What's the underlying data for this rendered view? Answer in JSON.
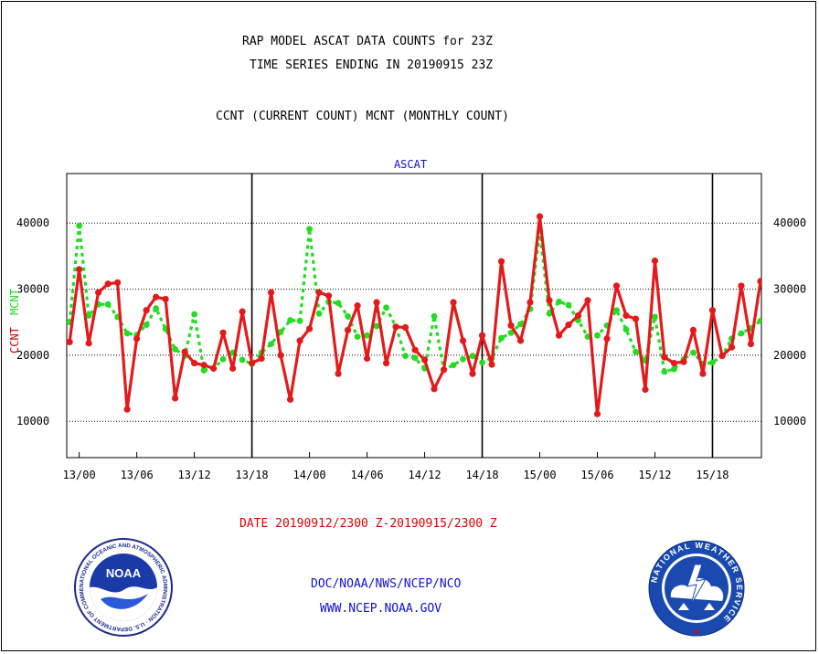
{
  "header": {
    "title_line1": "RAP MODEL ASCAT DATA COUNTS for 23Z",
    "title_line2": "TIME SERIES ENDING IN 20190915 23Z",
    "subtitle": "CCNT (CURRENT COUNT) MCNT (MONTHLY COUNT)"
  },
  "footer": {
    "date_range": "DATE 20190912/2300 Z-20190915/2300 Z",
    "org": "DOC/NOAA/NWS/NCEP/NCO",
    "url": "WWW.NCEP.NOAA.GOV"
  },
  "logos": {
    "left_text": "NOAA",
    "left_ring": "NATIONAL OCEANIC AND ATMOSPHERIC ADMINISTRATION · U.S. DEPARTMENT OF COMMERCE ·",
    "right_ring": "NATIONAL WEATHER SERVICE"
  },
  "colors": {
    "ccnt": "#e41a1a",
    "mcnt": "#22dd22",
    "text_blue": "#1010d0",
    "text_red": "#e00000"
  },
  "chart_data": {
    "type": "line",
    "title": "ASCAT",
    "ylabel_left_1": "CCNT",
    "ylabel_left_2": "MCNT",
    "ylim": [
      4500,
      47500
    ],
    "yticks": [
      10000,
      20000,
      30000,
      40000
    ],
    "xlim": [
      -1.3,
      71.1
    ],
    "xticks": [
      {
        "x": 0,
        "label": "13/00"
      },
      {
        "x": 6,
        "label": "13/06"
      },
      {
        "x": 12,
        "label": "13/12"
      },
      {
        "x": 18,
        "label": "13/18"
      },
      {
        "x": 24,
        "label": "14/00"
      },
      {
        "x": 30,
        "label": "14/06"
      },
      {
        "x": 36,
        "label": "14/12"
      },
      {
        "x": 42,
        "label": "14/18"
      },
      {
        "x": 48,
        "label": "15/00"
      },
      {
        "x": 54,
        "label": "15/06"
      },
      {
        "x": 60,
        "label": "15/12"
      },
      {
        "x": 66,
        "label": "15/18"
      }
    ],
    "day_boundaries": [
      18,
      42,
      66
    ],
    "x_start_hours_from_13_00": -1,
    "series": [
      {
        "name": "CCNT",
        "values": [
          22000,
          33000,
          21800,
          29500,
          30800,
          31000,
          11800,
          22500,
          26800,
          28800,
          28500,
          13500,
          20500,
          18800,
          18500,
          18000,
          23400,
          18000,
          26600,
          18800,
          19500,
          29500,
          20000,
          13300,
          22200,
          24000,
          29500,
          29000,
          17200,
          23800,
          27500,
          19500,
          28000,
          18800,
          24300,
          24200,
          20800,
          19300,
          14900,
          17800,
          28000,
          22200,
          17200,
          23000,
          18600,
          34200,
          24500,
          22200,
          28000,
          41000,
          28300,
          23000,
          24600,
          26000,
          28300,
          11100,
          22500,
          30500,
          26000,
          25500,
          14800,
          34300,
          19700,
          18800,
          19000,
          23800,
          17200,
          26800,
          19900,
          21200,
          30500,
          21700,
          31200
        ]
      },
      {
        "name": "MCNT",
        "values": [
          25000,
          39600,
          26000,
          27700,
          27700,
          25800,
          23300,
          23100,
          24600,
          27100,
          24000,
          20900,
          19900,
          26200,
          17700,
          18000,
          19400,
          20400,
          19300,
          18700,
          20400,
          21700,
          23500,
          25300,
          25200,
          39100,
          26300,
          28100,
          27900,
          25900,
          22800,
          23000,
          24400,
          27200,
          24300,
          19900,
          19600,
          18000,
          25900,
          17800,
          18500,
          19400,
          19900,
          18900,
          19600,
          22600,
          23400,
          24700,
          27000,
          38800,
          26300,
          28100,
          27600,
          25300,
          22800,
          23000,
          24500,
          26800,
          23900,
          20500,
          19200,
          25800,
          17500,
          17900,
          19400,
          20400,
          18700,
          18900,
          19900,
          22500,
          23300,
          24100,
          25200
        ]
      }
    ]
  }
}
